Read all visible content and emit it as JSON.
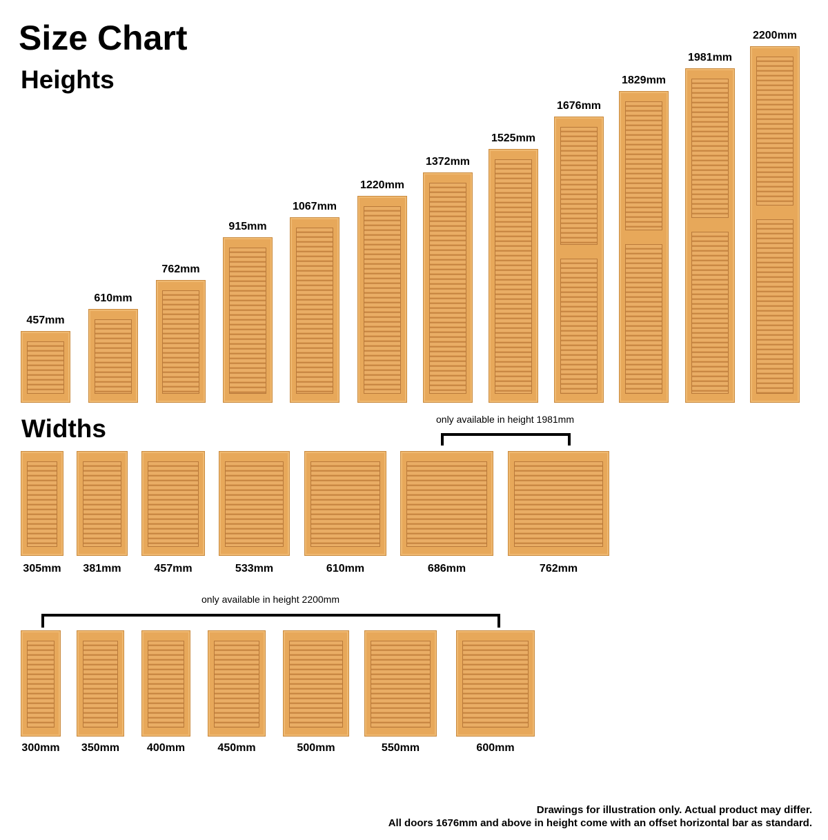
{
  "title": "Size Chart",
  "heights_heading": "Heights",
  "widths_heading": "Widths",
  "heights": [
    "457mm",
    "610mm",
    "762mm",
    "915mm",
    "1067mm",
    "1220mm",
    "1372mm",
    "1525mm",
    "1676mm",
    "1829mm",
    "1981mm",
    "2200mm"
  ],
  "widths_row1": [
    "305mm",
    "381mm",
    "457mm",
    "533mm",
    "610mm",
    "686mm",
    "762mm"
  ],
  "widths_row1_note": "only available in height 1981mm",
  "widths_row2": [
    "300mm",
    "350mm",
    "400mm",
    "450mm",
    "500mm",
    "550mm",
    "600mm"
  ],
  "widths_row2_note": "only available in height 2200mm",
  "footer": {
    "line1": "Drawings for illustration only. Actual product may differ.",
    "line2": "All doors 1676mm and above in height come with an offset horizontal bar as standard."
  },
  "colors": {
    "wood": "#e7a85a",
    "slat_dark": "#b97a3b",
    "text": "#000000"
  },
  "icon": "louvre-door"
}
